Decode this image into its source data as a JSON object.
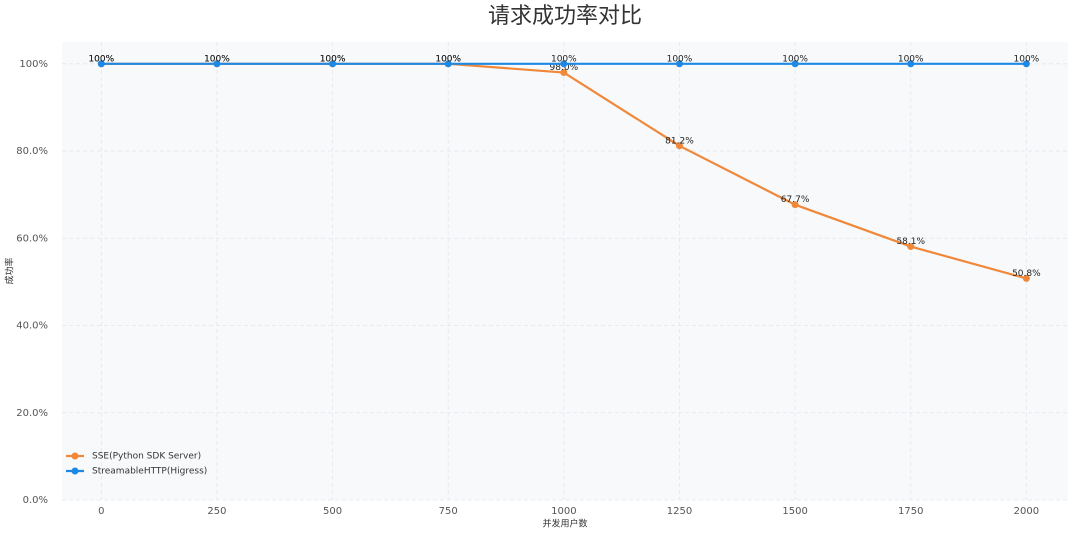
{
  "chart_data": {
    "type": "line",
    "title": "请求成功率对比",
    "x_label": "并发用户数",
    "y_label": "成功率",
    "x": [
      0,
      250,
      500,
      750,
      1000,
      1250,
      1500,
      1750,
      2000
    ],
    "xlim": [
      -85,
      2090
    ],
    "xticks": [
      0,
      250,
      500,
      750,
      1000,
      1250,
      1500,
      1750,
      2000
    ],
    "ylim": [
      0,
      105
    ],
    "yticks": [
      {
        "value": 0,
        "label": "0.0%"
      },
      {
        "value": 20,
        "label": "20.0%"
      },
      {
        "value": 40,
        "label": "40.0%"
      },
      {
        "value": 60,
        "label": "60.0%"
      },
      {
        "value": 80,
        "label": "80.0%"
      },
      {
        "value": 100,
        "label": "100%"
      }
    ],
    "grid": true,
    "legend": "lower left",
    "series": [
      {
        "name": "SSE(Python SDK Server)",
        "color": "#f0883a",
        "values": [
          100,
          100,
          100,
          100,
          98.0,
          81.2,
          67.7,
          58.1,
          50.8
        ],
        "value_labels": [
          "100%",
          "100%",
          "100%",
          "100%",
          "98.0%",
          "81.2%",
          "67.7%",
          "58.1%",
          "50.8%"
        ]
      },
      {
        "name": "StreamableHTTP(Higress)",
        "color": "#1e88e5",
        "values": [
          100,
          100,
          100,
          100,
          100,
          100,
          100,
          100,
          100
        ],
        "value_labels": [
          "100%",
          "100%",
          "100%",
          "100%",
          "100%",
          "100%",
          "100%",
          "100%",
          "100%"
        ]
      }
    ]
  }
}
